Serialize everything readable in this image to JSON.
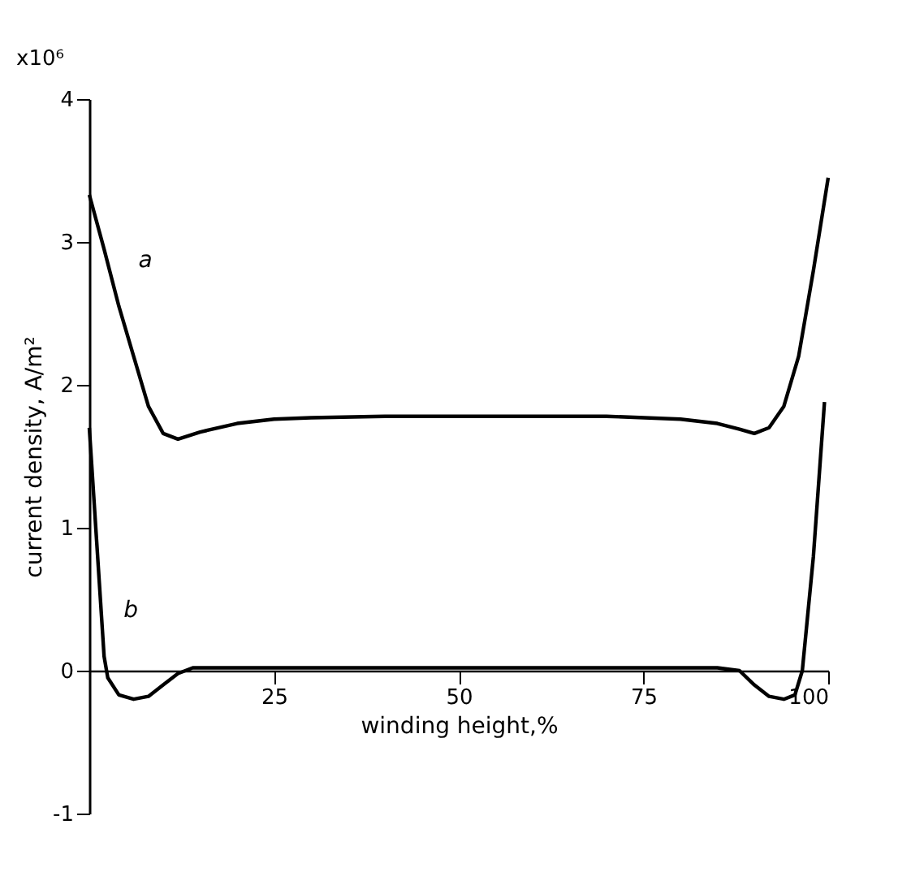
{
  "chart_data": {
    "type": "line",
    "xlabel": "winding height,%",
    "ylabel": "current density, A/m²",
    "xlim": [
      0,
      100
    ],
    "ylim": [
      -1,
      4
    ],
    "xticks": [
      {
        "value": 0,
        "label": null
      },
      25,
      50,
      75,
      100
    ],
    "yticks": [
      -1,
      0,
      1,
      2,
      3,
      4
    ],
    "grid": false,
    "marker": "none",
    "line_style": "solid",
    "series": [
      {
        "name": "a",
        "color": "#000000",
        "x": [
          0,
          2,
          4,
          6,
          8,
          10,
          12,
          15,
          20,
          25,
          30,
          40,
          50,
          60,
          70,
          80,
          85,
          88,
          90,
          92,
          94,
          96,
          98,
          100
        ],
        "values": [
          3.33,
          2.95,
          2.55,
          2.2,
          1.85,
          1.66,
          1.62,
          1.67,
          1.73,
          1.76,
          1.77,
          1.78,
          1.78,
          1.78,
          1.78,
          1.76,
          1.73,
          1.69,
          1.66,
          1.7,
          1.85,
          2.2,
          2.8,
          3.45
        ]
      },
      {
        "name": "b",
        "color": "#000000",
        "x": [
          0,
          1,
          2,
          2.5,
          4,
          6,
          8,
          10,
          12,
          14,
          20,
          50,
          85,
          88,
          90,
          92,
          94,
          95.5,
          96.5,
          98,
          99.5
        ],
        "values": [
          1.7,
          0.9,
          0.1,
          -0.05,
          -0.17,
          -0.2,
          -0.18,
          -0.1,
          -0.02,
          0.02,
          0.02,
          0.02,
          0.02,
          0.0,
          -0.1,
          -0.18,
          -0.2,
          -0.17,
          0,
          0.8,
          1.88
        ]
      }
    ],
    "annotations": [
      "x10⁶"
    ]
  }
}
